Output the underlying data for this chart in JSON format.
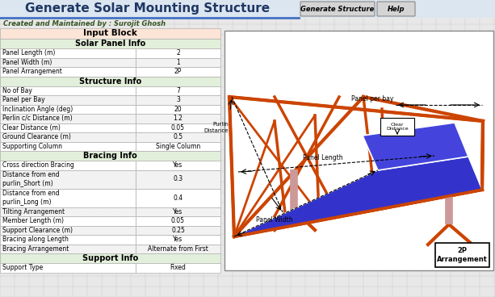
{
  "title": "Generate Solar Mounting Structure",
  "subtitle": "Created and Maintained by : Surojit Ghosh",
  "buttons": [
    "Generate Structure",
    "Help"
  ],
  "input_block_label": "Input Block",
  "sections": [
    {
      "name": "Solar Panel Info",
      "rows": [
        [
          "Panel Length (m)",
          "2"
        ],
        [
          "Panel Width (m)",
          "1"
        ],
        [
          "Panel Arrangement",
          "2P"
        ]
      ]
    },
    {
      "name": "Structure Info",
      "rows": [
        [
          "No of Bay",
          "7"
        ],
        [
          "Panel per Bay",
          "3"
        ],
        [
          "Inclination Angle (deg)",
          "20"
        ],
        [
          "Perlin c/c Distance (m)",
          "1.2"
        ],
        [
          "Clear Distance (m)",
          "0.05"
        ],
        [
          "Ground Clearance (m)",
          "0.5"
        ],
        [
          "Supporting Column",
          "Single Column"
        ]
      ]
    },
    {
      "name": "Bracing Info",
      "rows": [
        [
          "Cross direction Bracing",
          "Yes"
        ],
        [
          "Distance from end\npurlin_Short (m)",
          "0.3"
        ],
        [
          "Distance from end\npurlin_Long (m)",
          "0.4"
        ],
        [
          "Tilting Arrangement",
          "Yes"
        ],
        [
          "Member Length (m)",
          "0.05"
        ],
        [
          "Support Clearance (m)",
          "0.25"
        ],
        [
          "Bracing along Length",
          "Yes"
        ],
        [
          "Bracing Arrangement",
          "Alternate from First"
        ]
      ]
    },
    {
      "name": "Support Info",
      "rows": [
        [
          "Support Type",
          "Fixed"
        ]
      ]
    }
  ],
  "bg_color": "#e8e8e8",
  "title_bar_bg": "#dce6f1",
  "input_block_bg": "#fce4d6",
  "section_header_bg": "#e2efda",
  "row_bg1": "#ffffff",
  "row_bg2": "#f2f2f2",
  "title_color": "#1f3864",
  "subtitle_color": "#375623",
  "grid_color": "#b0b0b0",
  "frame_color": "#cc4400",
  "panel_color1": "#3333cc",
  "panel_color2": "#4444dd",
  "col_color": "#cc9999",
  "img_box_color": "#888888"
}
